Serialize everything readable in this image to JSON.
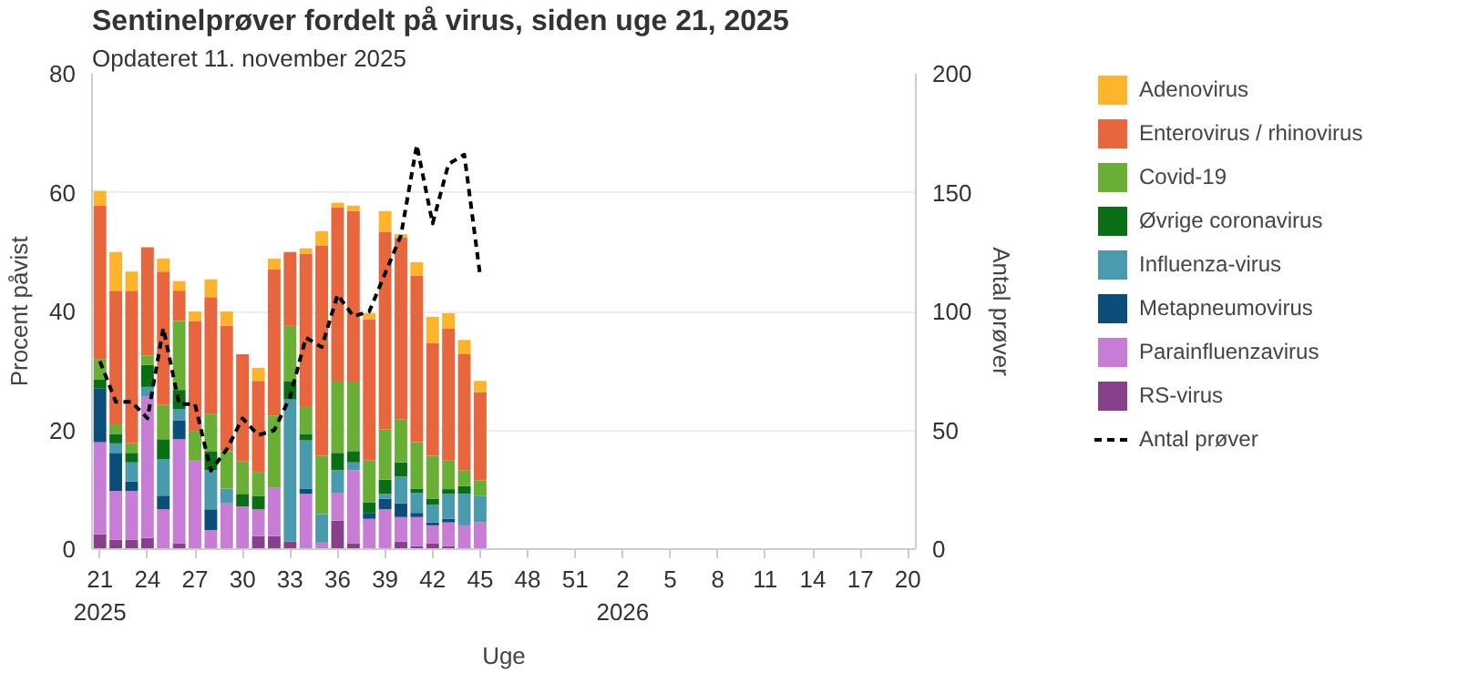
{
  "chart_data": {
    "type": "bar",
    "stacked": true,
    "title": "Sentinelprøver fordelt på virus, siden uge 21, 2025",
    "subtitle": "Opdateret 11. november 2025",
    "xlabel": "Uge",
    "ylabel": "Procent påvist",
    "y2label": "Antal prøver",
    "categories": [
      "21\n2025",
      null,
      null,
      "24",
      null,
      null,
      "27",
      null,
      null,
      "30",
      null,
      null,
      "33",
      null,
      null,
      "36",
      null,
      null,
      "39",
      null,
      null,
      "42",
      null,
      null,
      "45",
      null,
      null,
      "48",
      null,
      null,
      "51",
      null,
      null,
      "2\n2026",
      null,
      null,
      "5",
      null,
      null,
      "8",
      null,
      null,
      "11",
      null,
      null,
      "14",
      null,
      null,
      "17",
      null,
      null,
      "20"
    ],
    "ylim": [
      0,
      80
    ],
    "yticks": [
      0,
      20,
      40,
      60,
      80
    ],
    "y2lim": [
      0,
      200
    ],
    "y2ticks": [
      0,
      50,
      100,
      150,
      200
    ],
    "grid": "y",
    "legend": "right",
    "series": [
      {
        "name": "RS-virus",
        "color": "#86418a",
        "values": [
          2.5,
          1.6,
          1.6,
          1.9,
          null,
          1,
          null,
          null,
          null,
          null,
          2.2,
          2.2,
          1.3,
          null,
          null,
          4.8,
          1,
          null,
          null,
          1.3,
          0.5,
          1,
          0.5,
          null,
          null,
          null,
          null,
          null,
          null,
          null,
          null,
          null,
          null,
          null,
          null,
          null,
          null,
          null,
          null,
          null,
          null,
          null,
          null,
          null,
          null,
          null,
          null,
          null,
          null,
          null,
          null,
          null
        ]
      },
      {
        "name": "Parainfluenzavirus",
        "color": "#c77cd6",
        "values": [
          15.5,
          8.2,
          8.2,
          23.8,
          6.7,
          17.5,
          14.9,
          3.2,
          7.7,
          7.2,
          4.5,
          8.2,
          null,
          9.3,
          1.1,
          4.7,
          12.3,
          5.1,
          6.7,
          4.1,
          4.9,
          3,
          4,
          4,
          4.5,
          null,
          null,
          null,
          null,
          null,
          null,
          null,
          null,
          null,
          null,
          null,
          null,
          null,
          null,
          null,
          null,
          null,
          null,
          null,
          null,
          null,
          null,
          null,
          null,
          null,
          null,
          null
        ]
      },
      {
        "name": "Metapneumovirus",
        "color": "#0b4e7a",
        "values": [
          9,
          6.4,
          1.6,
          null,
          2.3,
          3.2,
          null,
          3.5,
          null,
          null,
          null,
          null,
          null,
          0.9,
          null,
          null,
          null,
          1,
          1.8,
          2.3,
          0.7,
          0.5,
          0.6,
          null,
          null,
          null,
          null,
          null,
          null,
          null,
          null,
          null,
          null,
          null,
          null,
          null,
          null,
          null,
          null,
          null,
          null,
          null,
          null,
          null,
          null,
          null,
          null,
          null,
          null,
          null,
          null,
          null
        ]
      },
      {
        "name": "Influenza-virus",
        "color": "#4a9aae",
        "values": [
          null,
          1.6,
          3.2,
          1.6,
          6.1,
          1.9,
          null,
          6.6,
          2.5,
          null,
          null,
          null,
          23.9,
          8.1,
          4.8,
          3.8,
          1.3,
          null,
          0.8,
          4.5,
          3.4,
          3,
          4.2,
          5.3,
          4.5,
          null,
          null,
          null,
          null,
          null,
          null,
          null,
          null,
          null,
          null,
          null,
          null,
          null,
          null,
          null,
          null,
          null,
          null,
          null,
          null,
          null,
          null,
          null,
          null,
          null,
          null,
          null
        ]
      },
      {
        "name": "Øvrige coronavirus",
        "color": "#0a6e14",
        "values": [
          1.5,
          1.6,
          1.6,
          3.7,
          3.4,
          3.2,
          null,
          3.2,
          null,
          2.1,
          2.2,
          null,
          3.1,
          1.1,
          null,
          2.9,
          1.9,
          1.8,
          2.4,
          2.4,
          0.7,
          1,
          0.8,
          1.3,
          null,
          null,
          null,
          null,
          null,
          null,
          null,
          null,
          null,
          null,
          null,
          null,
          null,
          null,
          null,
          null,
          null,
          null,
          null,
          null,
          null,
          null,
          null,
          null,
          null,
          null,
          null,
          null
        ]
      },
      {
        "name": "Covid-19",
        "color": "#6aaf35",
        "values": [
          3.5,
          1.6,
          1.6,
          1.6,
          5.8,
          11.6,
          5,
          6.3,
          6.3,
          5.5,
          4.1,
          12.1,
          9.3,
          4.5,
          9.8,
          12,
          11.7,
          7,
          8.4,
          7.2,
          7.8,
          7.2,
          4.8,
          2.7,
          2.6,
          null,
          null,
          null,
          null,
          null,
          null,
          null,
          null,
          null,
          null,
          null,
          null,
          null,
          null,
          null,
          null,
          null,
          null,
          null,
          null,
          null,
          null,
          null,
          null,
          null,
          null,
          null
        ]
      },
      {
        "name": "Enterovirus / rhinovirus",
        "color": "#e8663d",
        "values": [
          25.8,
          22.5,
          25.7,
          18.2,
          22.4,
          5.1,
          18.5,
          19.6,
          21.1,
          18,
          15.3,
          24.6,
          12.4,
          25.8,
          35.4,
          29.3,
          28.7,
          23.8,
          33.3,
          30.7,
          28,
          19,
          22.2,
          19.5,
          14.8,
          null,
          null,
          null,
          null,
          null,
          null,
          null,
          null,
          null,
          null,
          null,
          null,
          null,
          null,
          null,
          null,
          null,
          null,
          null,
          null,
          null,
          null,
          null,
          null,
          null,
          null,
          null
        ]
      },
      {
        "name": "Adenovirus",
        "color": "#fbb42c",
        "values": [
          2.5,
          6.5,
          3.2,
          null,
          2.2,
          1.6,
          1.6,
          3,
          2.4,
          null,
          2.2,
          1.8,
          null,
          0.9,
          2.4,
          0.8,
          0.9,
          1,
          3.5,
          0.5,
          2.3,
          4.4,
          2.6,
          2.4,
          1.9,
          null,
          null,
          null,
          null,
          null,
          null,
          null,
          null,
          null,
          null,
          null,
          null,
          null,
          null,
          null,
          null,
          null,
          null,
          null,
          null,
          null,
          null,
          null,
          null,
          null,
          null,
          null
        ]
      },
      {
        "name": "Antal prøver",
        "type": "line",
        "axis": "y2",
        "color": "#000000",
        "line_style": "dashed",
        "marker": "none",
        "values": [
          79,
          62,
          62,
          55,
          93,
          61,
          61,
          33,
          42,
          55,
          48,
          50,
          64,
          89,
          85,
          107,
          98,
          100,
          116,
          132,
          170,
          137,
          162,
          166,
          115,
          null,
          null,
          null,
          null,
          null,
          null,
          null,
          null,
          null,
          null,
          null,
          null,
          null,
          null,
          null,
          null,
          null,
          null,
          null,
          null,
          null,
          null,
          null,
          null,
          null,
          null,
          null
        ]
      }
    ]
  }
}
